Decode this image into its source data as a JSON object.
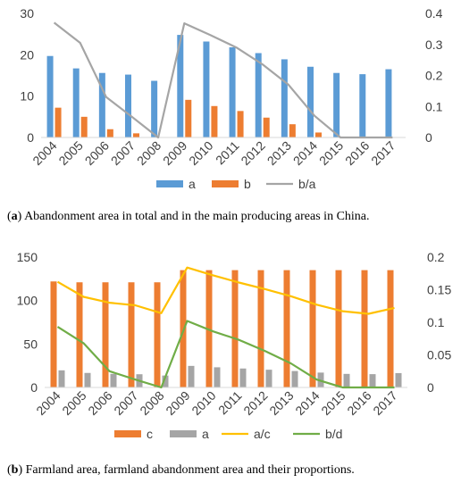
{
  "chart_data": [
    {
      "type": "bar",
      "categories": [
        "2004",
        "2005",
        "2006",
        "2007",
        "2008",
        "2009",
        "2010",
        "2011",
        "2012",
        "2013",
        "2014",
        "2015",
        "2016",
        "2017"
      ],
      "series": [
        {
          "name": "a",
          "kind": "bar",
          "axis": "left",
          "color": "#5B9BD5",
          "values": [
            19.7,
            16.7,
            15.6,
            15.2,
            13.7,
            24.8,
            23.2,
            21.8,
            20.4,
            18.9,
            17.1,
            15.6,
            15.3,
            16.5
          ]
        },
        {
          "name": "b",
          "kind": "bar",
          "axis": "left",
          "color": "#ED7D31",
          "values": [
            7.2,
            5.0,
            2.0,
            1.0,
            0.0,
            9.1,
            7.6,
            6.4,
            4.8,
            3.2,
            1.2,
            0.0,
            0.0,
            0.0
          ]
        },
        {
          "name": "b/a",
          "kind": "line",
          "axis": "right",
          "color": "#A5A5A5",
          "values": [
            0.37,
            0.305,
            0.13,
            0.066,
            0.0,
            0.368,
            0.33,
            0.29,
            0.236,
            0.17,
            0.07,
            0.0,
            0.0,
            0.0
          ]
        }
      ],
      "ylim": [
        0,
        30
      ],
      "yticks": [
        "0",
        "10",
        "20",
        "30"
      ],
      "y2lim": [
        0,
        0.4
      ],
      "y2ticks": [
        "0",
        "0.1",
        "0.2",
        "0.3",
        "0.4"
      ],
      "grid": false,
      "legend": "bottom",
      "caption": {
        "label": "a",
        "text": "Abandonment area in total and in the main producing areas in China."
      }
    },
    {
      "type": "bar",
      "categories": [
        "2004",
        "2005",
        "2006",
        "2007",
        "2008",
        "2009",
        "2010",
        "2011",
        "2012",
        "2013",
        "2014",
        "2015",
        "2016",
        "2017"
      ],
      "series": [
        {
          "name": "c",
          "kind": "bar",
          "axis": "left",
          "color": "#ED7D31",
          "values": [
            122,
            121,
            121,
            121,
            121,
            135,
            135,
            135,
            135,
            135,
            135,
            135,
            135,
            135
          ]
        },
        {
          "name": "a",
          "kind": "bar",
          "axis": "left",
          "color": "#A5A5A5",
          "values": [
            19.7,
            16.7,
            15.6,
            15.2,
            13.7,
            24.8,
            23.2,
            21.8,
            20.4,
            18.9,
            17.1,
            15.6,
            15.3,
            16.5
          ]
        },
        {
          "name": "a/c",
          "kind": "line",
          "axis": "right",
          "color": "#FFC000",
          "values": [
            0.162,
            0.139,
            0.13,
            0.126,
            0.114,
            0.184,
            0.172,
            0.161,
            0.151,
            0.14,
            0.127,
            0.117,
            0.113,
            0.122
          ]
        },
        {
          "name": "b/d",
          "kind": "line",
          "axis": "right",
          "color": "#70AD47",
          "values": [
            0.093,
            0.068,
            0.025,
            0.012,
            0.0,
            0.102,
            0.086,
            0.073,
            0.056,
            0.037,
            0.012,
            0.0,
            0.0,
            0.0
          ]
        }
      ],
      "ylim": [
        0,
        150
      ],
      "yticks": [
        "0",
        "50",
        "100",
        "150"
      ],
      "y2lim": [
        0,
        0.2
      ],
      "y2ticks": [
        "0",
        "0.05",
        "0.1",
        "0.15",
        "0.2"
      ],
      "grid": false,
      "legend": "bottom",
      "caption": {
        "label": "b",
        "text": "Farmland area, farmland abandonment area and their proportions."
      }
    }
  ]
}
